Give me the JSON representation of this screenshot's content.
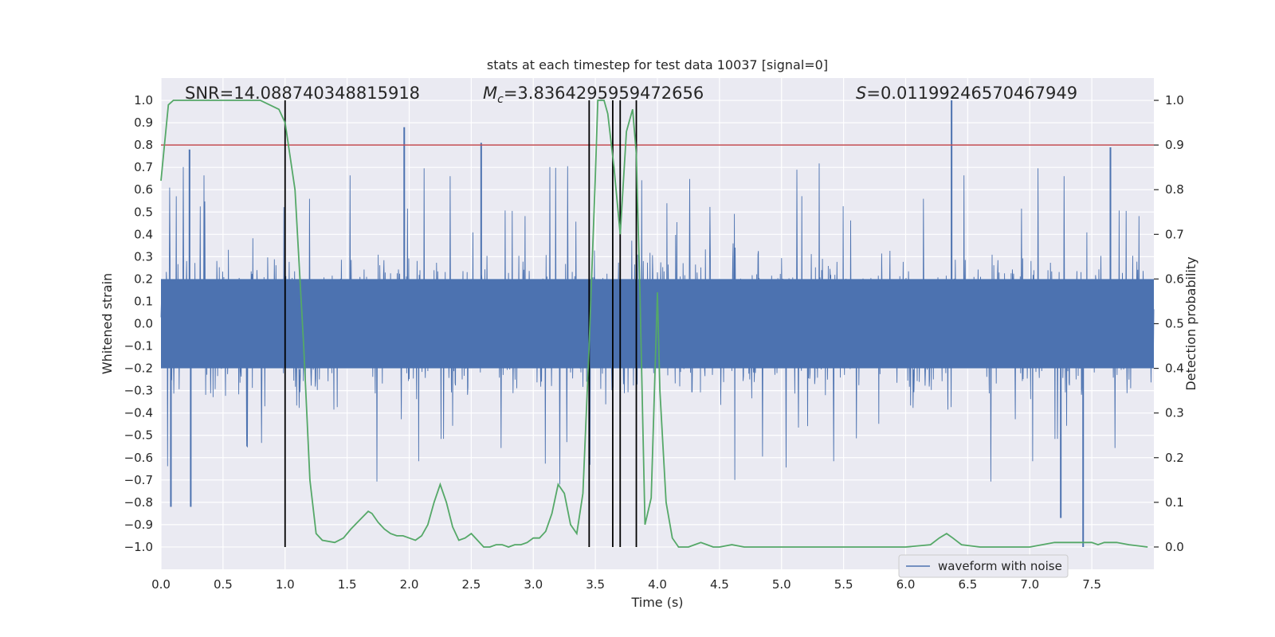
{
  "chart_data": {
    "type": "line",
    "title": "stats at each timestep for test data 10037 [signal=0]",
    "xlabel": "Time (s)",
    "ylabel_left": "Whitened strain",
    "ylabel_right": "Detection probability",
    "xlim": [
      0.0,
      8.0
    ],
    "ylim_left": [
      -1.1,
      1.1
    ],
    "ylim_right": [
      -0.05,
      1.05
    ],
    "x_ticks": [
      "0.0",
      "0.5",
      "1.0",
      "1.5",
      "2.0",
      "2.5",
      "3.0",
      "3.5",
      "4.0",
      "4.5",
      "5.0",
      "5.5",
      "6.0",
      "6.5",
      "7.0",
      "7.5"
    ],
    "x_tick_values": [
      0.0,
      0.5,
      1.0,
      1.5,
      2.0,
      2.5,
      3.0,
      3.5,
      4.0,
      4.5,
      5.0,
      5.5,
      6.0,
      6.5,
      7.0,
      7.5
    ],
    "y_left_ticks": [
      "1.0",
      "0.9",
      "0.8",
      "0.7",
      "0.6",
      "0.5",
      "0.4",
      "0.3",
      "0.2",
      "0.1",
      "0.0",
      "−0.1",
      "−0.2",
      "−0.3",
      "−0.4",
      "−0.5",
      "−0.6",
      "−0.7",
      "−0.8",
      "−0.9",
      "−1.0"
    ],
    "y_left_tick_values": [
      1.0,
      0.9,
      0.8,
      0.7,
      0.6,
      0.5,
      0.4,
      0.3,
      0.2,
      0.1,
      0.0,
      -0.1,
      -0.2,
      -0.3,
      -0.4,
      -0.5,
      -0.6,
      -0.7,
      -0.8,
      -0.9,
      -1.0
    ],
    "y_right_ticks": [
      "1.0",
      "0.9",
      "0.8",
      "0.7",
      "0.6",
      "0.5",
      "0.4",
      "0.3",
      "0.2",
      "0.1",
      "0.0"
    ],
    "y_right_tick_values": [
      1.0,
      0.9,
      0.8,
      0.7,
      0.6,
      0.5,
      0.4,
      0.3,
      0.2,
      0.1,
      0.0
    ],
    "annotations": {
      "snr": "SNR=14.088740348815918",
      "mc_symbol": "M",
      "mc_sub": "c",
      "mc_value": "=3.8364295959472656",
      "s_symbol": "S",
      "s_value": "=0.01199246570467949"
    },
    "threshold": {
      "axis": "right",
      "value": 0.9,
      "color": "#c44e52"
    },
    "vertical_lines": {
      "x": [
        1.0,
        3.45,
        3.64,
        3.7,
        3.83
      ],
      "y_range": [
        -1.0,
        1.0
      ],
      "color": "#000000"
    },
    "series": [
      {
        "name": "waveform with noise",
        "axis": "left",
        "color": "#4c72b0",
        "kind": "dense noise band",
        "core_band": [
          -0.2,
          0.2
        ],
        "typical_envelope": [
          -0.4,
          0.4
        ],
        "extremes": {
          "max": 1.0,
          "min": -1.0
        },
        "peaks": [
          {
            "x": 0.23,
            "y": 0.78
          },
          {
            "x": 1.96,
            "y": 0.88
          },
          {
            "x": 2.58,
            "y": 0.81
          },
          {
            "x": 6.37,
            "y": 1.0
          },
          {
            "x": 7.65,
            "y": 0.79
          },
          {
            "x": 7.43,
            "y": -1.0
          },
          {
            "x": 0.08,
            "y": -0.82
          },
          {
            "x": 0.24,
            "y": -0.82
          },
          {
            "x": 7.25,
            "y": -0.87
          }
        ]
      },
      {
        "name": "detection probability",
        "axis": "right",
        "color": "#55a868",
        "x": [
          0.0,
          0.06,
          0.1,
          0.2,
          0.4,
          0.6,
          0.8,
          0.95,
          1.0,
          1.08,
          1.15,
          1.2,
          1.25,
          1.3,
          1.4,
          1.47,
          1.53,
          1.6,
          1.67,
          1.7,
          1.75,
          1.8,
          1.85,
          1.9,
          1.95,
          2.0,
          2.05,
          2.1,
          2.15,
          2.2,
          2.25,
          2.3,
          2.35,
          2.4,
          2.45,
          2.5,
          2.55,
          2.6,
          2.65,
          2.7,
          2.75,
          2.8,
          2.85,
          2.9,
          2.95,
          3.0,
          3.05,
          3.1,
          3.15,
          3.2,
          3.25,
          3.3,
          3.35,
          3.4,
          3.45,
          3.5,
          3.52,
          3.57,
          3.6,
          3.65,
          3.7,
          3.75,
          3.8,
          3.83,
          3.86,
          3.9,
          3.95,
          4.0,
          4.02,
          4.07,
          4.12,
          4.17,
          4.25,
          4.3,
          4.35,
          4.4,
          4.45,
          4.5,
          4.6,
          4.7,
          4.8,
          4.9,
          5.0,
          5.5,
          6.0,
          6.2,
          6.27,
          6.33,
          6.38,
          6.45,
          6.6,
          6.8,
          7.0,
          7.1,
          7.2,
          7.3,
          7.4,
          7.5,
          7.55,
          7.6,
          7.7,
          7.8,
          7.95
        ],
        "values": [
          0.82,
          0.99,
          1.0,
          1.0,
          1.0,
          1.0,
          1.0,
          0.98,
          0.95,
          0.8,
          0.45,
          0.15,
          0.03,
          0.015,
          0.01,
          0.02,
          0.04,
          0.06,
          0.08,
          0.075,
          0.055,
          0.04,
          0.03,
          0.025,
          0.025,
          0.02,
          0.015,
          0.025,
          0.05,
          0.1,
          0.14,
          0.1,
          0.045,
          0.015,
          0.02,
          0.03,
          0.015,
          0.0,
          0.0,
          0.005,
          0.005,
          0.0,
          0.005,
          0.005,
          0.01,
          0.02,
          0.02,
          0.035,
          0.075,
          0.14,
          0.12,
          0.05,
          0.03,
          0.12,
          0.45,
          0.83,
          1.0,
          1.0,
          0.97,
          0.85,
          0.7,
          0.93,
          0.98,
          0.88,
          0.56,
          0.05,
          0.11,
          0.57,
          0.35,
          0.1,
          0.02,
          0.0,
          0.0,
          0.005,
          0.01,
          0.005,
          0.0,
          0.0,
          0.005,
          0.0,
          0.0,
          0.0,
          0.0,
          0.0,
          0.0,
          0.005,
          0.02,
          0.03,
          0.02,
          0.005,
          0.0,
          0.0,
          0.0,
          0.005,
          0.01,
          0.01,
          0.01,
          0.01,
          0.005,
          0.01,
          0.01,
          0.005,
          0.0
        ]
      }
    ],
    "legend": {
      "entries": [
        "waveform with noise"
      ],
      "location": "lower-right"
    },
    "grid": true
  }
}
